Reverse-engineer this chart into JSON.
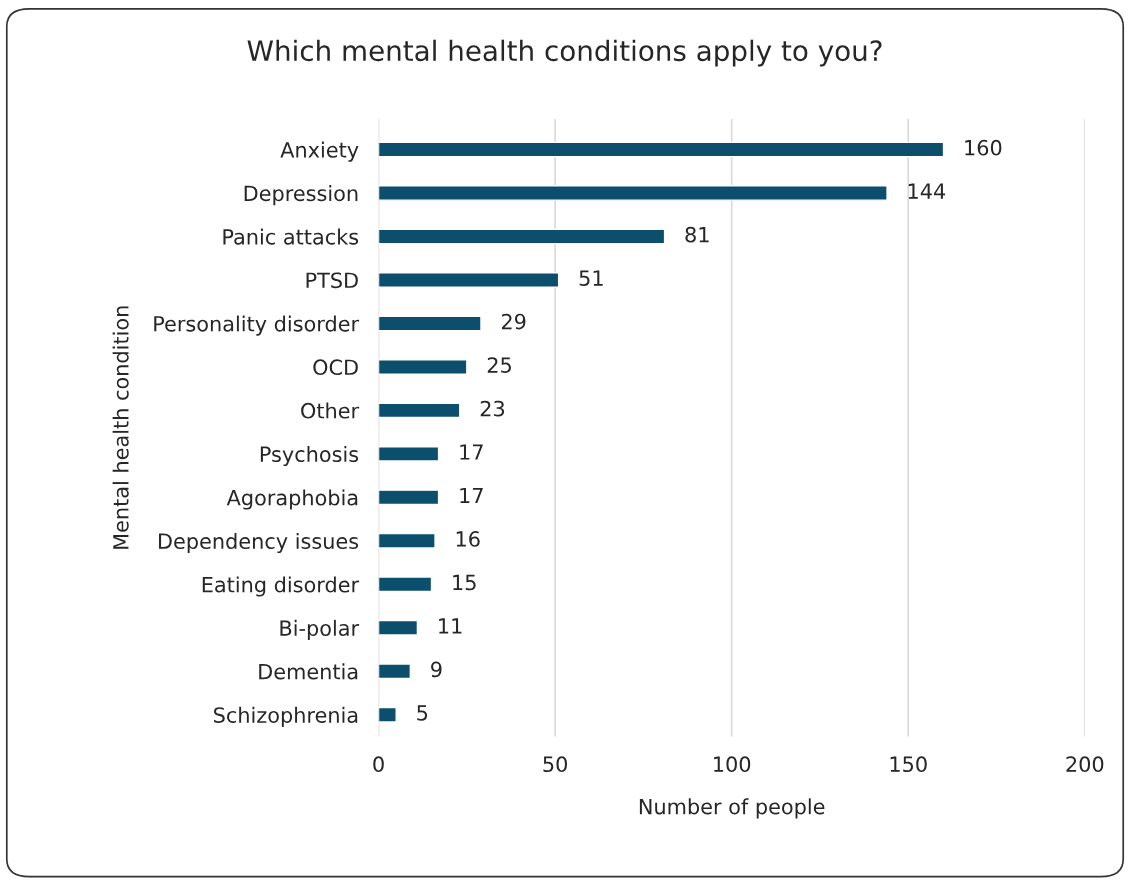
{
  "chart_data": {
    "type": "bar",
    "orientation": "horizontal",
    "title": "Which mental health conditions apply to you?",
    "xlabel": "Number of people",
    "ylabel": "Mental health condition",
    "categories": [
      "Anxiety",
      "Depression",
      "Panic attacks",
      "PTSD",
      "Personality disorder",
      "OCD",
      "Other",
      "Psychosis",
      "Agoraphobia",
      "Dependency issues",
      "Eating disorder",
      "Bi-polar",
      "Dementia",
      "Schizophrenia"
    ],
    "values": [
      160,
      144,
      81,
      51,
      29,
      25,
      23,
      17,
      17,
      16,
      15,
      11,
      9,
      5
    ],
    "color": "#0b4f6c",
    "xlim": [
      0,
      200
    ],
    "xticks": [
      0,
      50,
      100,
      150,
      200
    ],
    "grid": "x",
    "data_labels": true
  }
}
